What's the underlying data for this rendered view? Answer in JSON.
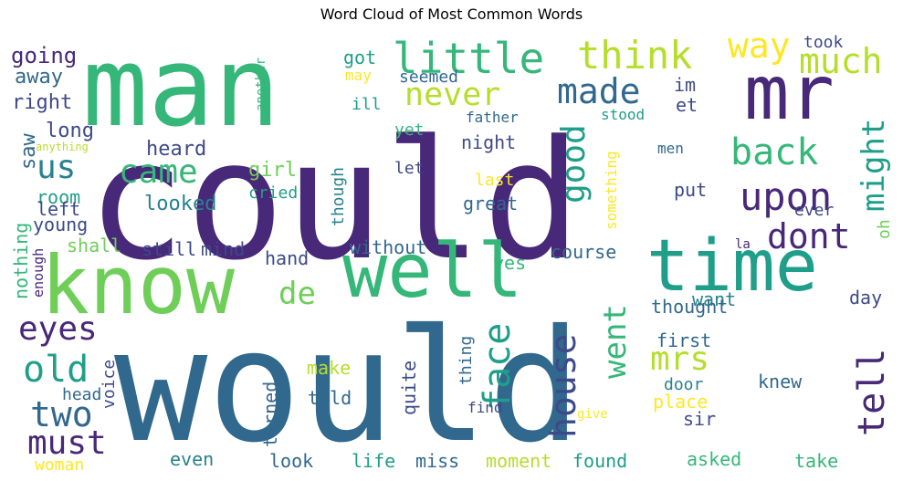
{
  "chart_data": {
    "type": "wordcloud",
    "title": "Word Cloud of Most Common Words",
    "colormap": "viridis",
    "palette": [
      "#440154",
      "#482878",
      "#3e4989",
      "#31688e",
      "#26828e",
      "#1f9e89",
      "#35b779",
      "#6ece58",
      "#b5de2b",
      "#fde725"
    ],
    "words": [
      {
        "word": "could",
        "c": 1
      },
      {
        "word": "would",
        "c": 3
      },
      {
        "word": "man",
        "c": 6
      },
      {
        "word": "know",
        "c": 7
      },
      {
        "word": "well",
        "c": 6
      },
      {
        "word": "time",
        "c": 5
      },
      {
        "word": "mr",
        "c": 1
      },
      {
        "word": "little",
        "c": 6
      },
      {
        "word": "think",
        "c": 8
      },
      {
        "word": "way",
        "c": 9
      },
      {
        "word": "much",
        "c": 8
      },
      {
        "word": "never",
        "c": 8
      },
      {
        "word": "made",
        "c": 3
      },
      {
        "word": "back",
        "c": 6
      },
      {
        "word": "upon",
        "c": 1
      },
      {
        "word": "dont",
        "c": 1
      },
      {
        "word": "might",
        "c": 5
      },
      {
        "word": "good",
        "c": 5
      },
      {
        "word": "came",
        "c": 6
      },
      {
        "word": "us",
        "c": 4
      },
      {
        "word": "eyes",
        "c": 1
      },
      {
        "word": "old",
        "c": 5
      },
      {
        "word": "two",
        "c": 3
      },
      {
        "word": "must",
        "c": 1
      },
      {
        "word": "de",
        "c": 7
      },
      {
        "word": "face",
        "c": 5
      },
      {
        "word": "house",
        "c": 2
      },
      {
        "word": "went",
        "c": 6
      },
      {
        "word": "mrs",
        "c": 8
      },
      {
        "word": "tell",
        "c": 1
      },
      {
        "word": "going",
        "c": 1
      },
      {
        "word": "away",
        "c": 3
      },
      {
        "word": "right",
        "c": 2
      },
      {
        "word": "long",
        "c": 2
      },
      {
        "word": "saw",
        "c": 3
      },
      {
        "word": "anything",
        "c": 8
      },
      {
        "word": "heard",
        "c": 2
      },
      {
        "word": "girl",
        "c": 7
      },
      {
        "word": "looked",
        "c": 4
      },
      {
        "word": "room",
        "c": 5
      },
      {
        "word": "left",
        "c": 2
      },
      {
        "word": "young",
        "c": 2
      },
      {
        "word": "nothing",
        "c": 6
      },
      {
        "word": "enough",
        "c": 1
      },
      {
        "word": "shall",
        "c": 7
      },
      {
        "word": "still",
        "c": 2
      },
      {
        "word": "mind",
        "c": 2
      },
      {
        "word": "hand",
        "c": 2
      },
      {
        "word": "without",
        "c": 3
      },
      {
        "word": "course",
        "c": 3
      },
      {
        "word": "another",
        "c": 6
      },
      {
        "word": "got",
        "c": 5
      },
      {
        "word": "may",
        "c": 9
      },
      {
        "word": "seemed",
        "c": 3
      },
      {
        "word": "ill",
        "c": 5
      },
      {
        "word": "yet",
        "c": 6
      },
      {
        "word": "night",
        "c": 2
      },
      {
        "word": "let",
        "c": 2
      },
      {
        "word": "last",
        "c": 9
      },
      {
        "word": "though",
        "c": 4
      },
      {
        "word": "great",
        "c": 3
      },
      {
        "word": "cried",
        "c": 5
      },
      {
        "word": "something",
        "c": 9
      },
      {
        "word": "father",
        "c": 3
      },
      {
        "word": "stood",
        "c": 5
      },
      {
        "word": "et",
        "c": 2
      },
      {
        "word": "im",
        "c": 2
      },
      {
        "word": "took",
        "c": 2
      },
      {
        "word": "men",
        "c": 3
      },
      {
        "word": "put",
        "c": 2
      },
      {
        "word": "ever",
        "c": 2
      },
      {
        "word": "oh",
        "c": 7
      },
      {
        "word": "la",
        "c": 1
      },
      {
        "word": "yes",
        "c": 6
      },
      {
        "word": "want",
        "c": 4
      },
      {
        "word": "thought",
        "c": 3
      },
      {
        "word": "day",
        "c": 2
      },
      {
        "word": "first",
        "c": 3
      },
      {
        "word": "thing",
        "c": 3
      },
      {
        "word": "voice",
        "c": 2
      },
      {
        "word": "head",
        "c": 3
      },
      {
        "word": "make",
        "c": 8
      },
      {
        "word": "turned",
        "c": 3
      },
      {
        "word": "told",
        "c": 3
      },
      {
        "word": "quite",
        "c": 2
      },
      {
        "word": "door",
        "c": 4
      },
      {
        "word": "knew",
        "c": 3
      },
      {
        "word": "place",
        "c": 9
      },
      {
        "word": "find",
        "c": 2
      },
      {
        "word": "give",
        "c": 9
      },
      {
        "word": "sir",
        "c": 2
      },
      {
        "word": "woman",
        "c": 9
      },
      {
        "word": "even",
        "c": 4
      },
      {
        "word": "look",
        "c": 3
      },
      {
        "word": "life",
        "c": 5
      },
      {
        "word": "miss",
        "c": 3
      },
      {
        "word": "moment",
        "c": 8
      },
      {
        "word": "found",
        "c": 5
      },
      {
        "word": "asked",
        "c": 6
      },
      {
        "word": "take",
        "c": 6
      }
    ]
  }
}
